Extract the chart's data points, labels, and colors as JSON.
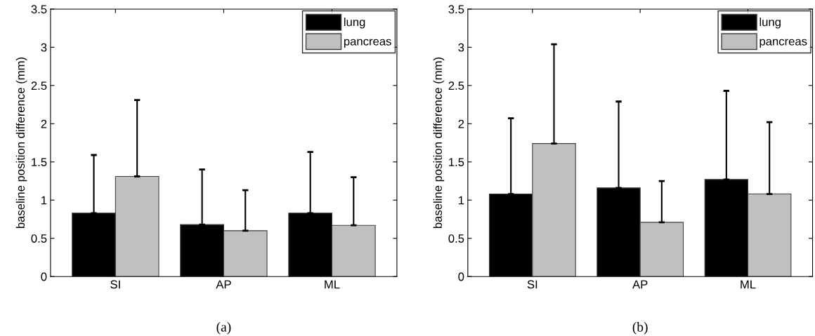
{
  "chart_data": [
    {
      "type": "bar",
      "categories": [
        "SI",
        "AP",
        "ML"
      ],
      "ylabel": "baseline position difference (mm)",
      "ylim": [
        0,
        3.5
      ],
      "yticks": [
        0,
        0.5,
        1,
        1.5,
        2,
        2.5,
        3,
        3.5
      ],
      "grid": false,
      "legend": "top right",
      "annotations": [
        "(a)"
      ],
      "series": [
        {
          "name": "lung",
          "color": "#000000",
          "values": [
            0.83,
            0.68,
            0.83
          ],
          "errors": [
            [
              0.83,
              1.59
            ],
            [
              0.68,
              1.4
            ],
            [
              0.83,
              1.63
            ]
          ]
        },
        {
          "name": "pancreas",
          "color": "#c0c0c0",
          "values": [
            1.31,
            0.6,
            0.67
          ],
          "errors": [
            [
              1.31,
              2.31
            ],
            [
              0.6,
              1.13
            ],
            [
              0.67,
              1.3
            ]
          ]
        }
      ]
    },
    {
      "type": "bar",
      "categories": [
        "SI",
        "AP",
        "ML"
      ],
      "ylabel": "baseline position difference (mm)",
      "ylim": [
        0,
        3.5
      ],
      "yticks": [
        0,
        0.5,
        1,
        1.5,
        2,
        2.5,
        3,
        3.5
      ],
      "grid": false,
      "legend": "top right",
      "annotations": [
        "(b)"
      ],
      "series": [
        {
          "name": "lung",
          "color": "#000000",
          "values": [
            1.08,
            1.16,
            1.27
          ],
          "errors": [
            [
              1.08,
              2.07
            ],
            [
              1.16,
              2.29
            ],
            [
              1.27,
              2.43
            ]
          ]
        },
        {
          "name": "pancreas",
          "color": "#c0c0c0",
          "values": [
            1.74,
            0.71,
            1.08
          ],
          "errors": [
            [
              1.74,
              3.04
            ],
            [
              0.71,
              1.25
            ],
            [
              1.08,
              2.02
            ]
          ]
        }
      ]
    }
  ]
}
